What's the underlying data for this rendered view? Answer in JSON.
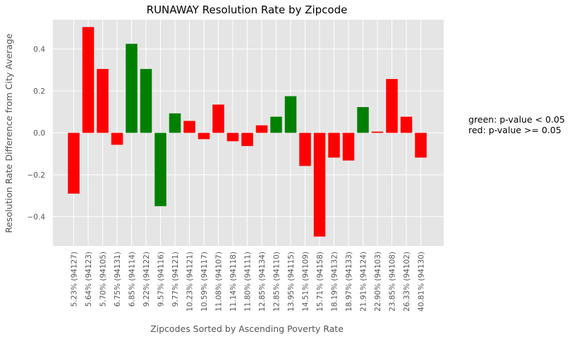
{
  "chart_data": {
    "type": "bar",
    "title": "RUNAWAY Resolution Rate by Zipcode",
    "xlabel": "Zipcodes Sorted by Ascending Poverty Rate",
    "ylabel": "Resolution Rate Difference from City Average",
    "ylim": [
      -0.54,
      0.54
    ],
    "yticks": [
      -0.4,
      -0.2,
      0.0,
      0.2,
      0.4
    ],
    "ytick_labels": [
      "−0.4",
      "−0.2",
      "0.0",
      "0.2",
      "0.4"
    ],
    "grid": true,
    "categories": [
      "5.23% (94127)",
      "5.64% (94123)",
      "5.70% (94105)",
      "6.75% (94131)",
      "6.85% (94114)",
      "9.22% (94122)",
      "9.57% (94116)",
      "9.77% (94121)",
      "10.23% (94121)",
      "10.59% (94117)",
      "11.08% (94107)",
      "11.14% (94118)",
      "11.80% (94111)",
      "12.85% (94134)",
      "12.85% (94110)",
      "13.95% (94115)",
      "14.51% (94109)",
      "15.71% (94158)",
      "18.19% (94132)",
      "18.97% (94133)",
      "21.91% (94124)",
      "22.90% (94103)",
      "23.85% (94108)",
      "26.33% (94102)",
      "40.81% (94130)"
    ],
    "values": [
      -0.29,
      0.505,
      0.305,
      -0.057,
      0.425,
      0.305,
      -0.35,
      0.093,
      0.057,
      -0.03,
      0.135,
      -0.04,
      -0.063,
      0.036,
      0.077,
      0.175,
      -0.158,
      -0.495,
      -0.118,
      -0.132,
      0.123,
      0.006,
      0.257,
      0.077,
      -0.118
    ],
    "bar_colors": [
      "red",
      "red",
      "red",
      "red",
      "green",
      "green",
      "green",
      "green",
      "red",
      "red",
      "red",
      "red",
      "red",
      "red",
      "green",
      "green",
      "red",
      "red",
      "red",
      "red",
      "green",
      "red",
      "red",
      "red",
      "red"
    ],
    "colors": {
      "green": "#008000",
      "red": "#ff0000",
      "plot_bg": "#e5e5e5",
      "grid": "#ffffff"
    },
    "annotations": [
      "green: p-value < 0.05",
      "red: p-value >= 0.05"
    ]
  }
}
